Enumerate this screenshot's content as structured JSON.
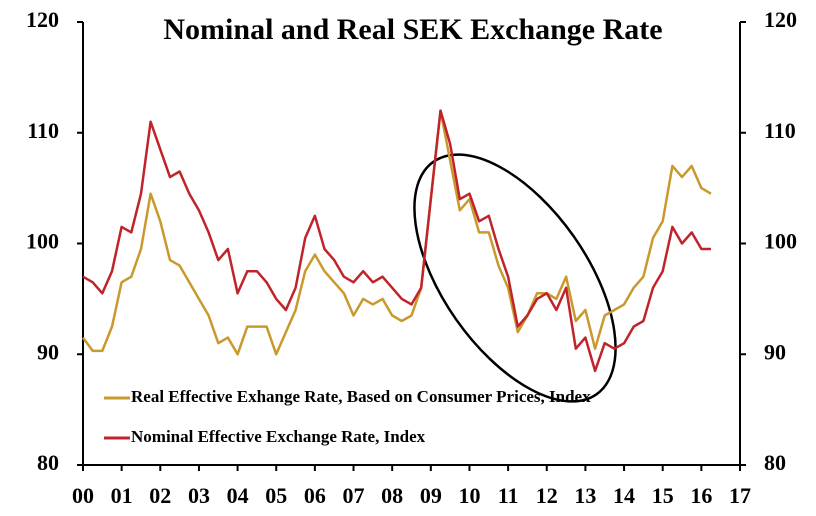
{
  "chart_data": {
    "type": "line",
    "title": "Nominal and Real SEK Exchange Rate",
    "x": [
      0,
      0.25,
      0.5,
      0.75,
      1,
      1.25,
      1.5,
      1.75,
      2,
      2.25,
      2.5,
      2.75,
      3,
      3.25,
      3.5,
      3.75,
      4,
      4.25,
      4.5,
      4.75,
      5,
      5.25,
      5.5,
      5.75,
      6,
      6.25,
      6.5,
      6.75,
      7,
      7.25,
      7.5,
      7.75,
      8,
      8.25,
      8.5,
      8.75,
      9,
      9.25,
      9.5,
      9.75,
      10,
      10.25,
      10.5,
      10.75,
      11,
      11.25,
      11.5,
      11.75,
      12,
      12.25,
      12.5,
      12.75,
      13,
      13.25,
      13.5,
      13.75,
      14,
      14.25,
      14.5,
      14.75,
      15,
      15.25,
      15.5,
      15.75,
      16,
      16.25
    ],
    "series": [
      {
        "name": "Real Effective Exhange Rate, Based on Consumer Prices, Index",
        "color": "#c9992e",
        "values": [
          91.5,
          90.3,
          90.3,
          92.5,
          96.5,
          97,
          99.5,
          104.5,
          102,
          98.5,
          98,
          96.5,
          95,
          93.5,
          91,
          91.5,
          90,
          92.5,
          92.5,
          92.5,
          90,
          92,
          94,
          97.5,
          99,
          97.5,
          96.5,
          95.5,
          93.5,
          95,
          94.5,
          95,
          93.5,
          93,
          93.5,
          96,
          104,
          112,
          107.5,
          103,
          104,
          101,
          101,
          98,
          96,
          92,
          93.5,
          95.5,
          95.5,
          95,
          97,
          93,
          94,
          90.5,
          93.5,
          94,
          94.5,
          96,
          97,
          100.5,
          102,
          107,
          106,
          107,
          105,
          104.5
        ]
      },
      {
        "name": "Nominal Effective Exchange Rate, Index",
        "color": "#c0242a",
        "values": [
          97,
          96.5,
          95.5,
          97.5,
          101.5,
          101,
          104.5,
          111,
          108.5,
          106,
          106.5,
          104.5,
          103,
          101,
          98.5,
          99.5,
          95.5,
          97.5,
          97.5,
          96.5,
          95,
          94,
          96,
          100.5,
          102.5,
          99.5,
          98.5,
          97,
          96.5,
          97.5,
          96.5,
          97,
          96,
          95,
          94.5,
          96,
          104,
          112,
          109,
          104,
          104.5,
          102,
          102.5,
          99.5,
          97,
          92.5,
          93.5,
          95,
          95.5,
          94,
          96,
          90.5,
          91.5,
          88.5,
          91,
          90.5,
          91,
          92.5,
          93,
          96,
          97.5,
          101.5,
          100,
          101,
          99.5,
          99.5
        ]
      }
    ],
    "xlim": [
      0,
      17
    ],
    "xticks": [
      {
        "value": 0,
        "label": "00"
      },
      {
        "value": 1,
        "label": "01"
      },
      {
        "value": 2,
        "label": "02"
      },
      {
        "value": 3,
        "label": "03"
      },
      {
        "value": 4,
        "label": "04"
      },
      {
        "value": 5,
        "label": "05"
      },
      {
        "value": 6,
        "label": "06"
      },
      {
        "value": 7,
        "label": "07"
      },
      {
        "value": 8,
        "label": "08"
      },
      {
        "value": 9,
        "label": "09"
      },
      10,
      11,
      12,
      13,
      14,
      15,
      16,
      17
    ],
    "ylim": [
      80,
      120
    ],
    "yticks": [
      80,
      90,
      100,
      110,
      120
    ],
    "y2lim": [
      80,
      120
    ],
    "y2ticks": [
      80,
      90,
      100,
      110,
      120
    ],
    "legend": "lower left"
  }
}
